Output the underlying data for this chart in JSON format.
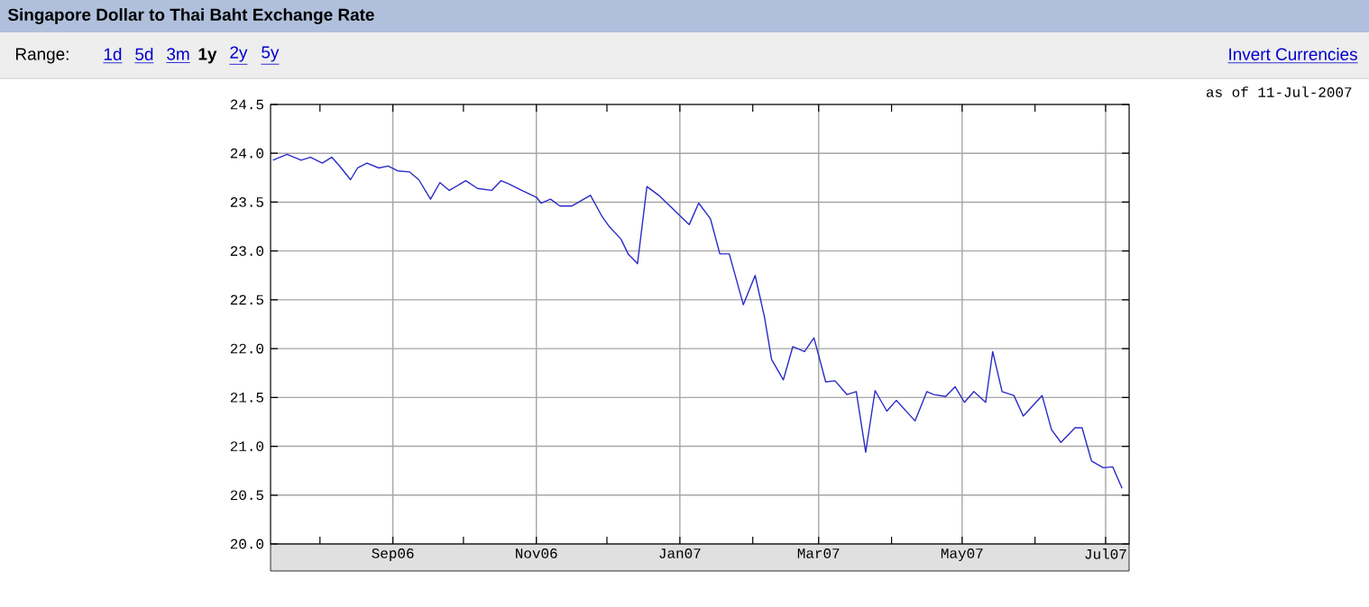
{
  "chart_data": {
    "type": "line",
    "title": "Singapore Dollar to Thai Baht Exchange Rate",
    "annotations": [
      "as of 11-Jul-2007",
      "Range:",
      "1d",
      "5d",
      "3m",
      "1y",
      "2y",
      "5y",
      "Invert Currencies"
    ],
    "x": [
      "2006-07-12",
      "2006-07-18",
      "2006-07-24",
      "2006-07-28",
      "2006-08-02",
      "2006-08-06",
      "2006-08-09",
      "2006-08-14",
      "2006-08-17",
      "2006-08-21",
      "2006-08-26",
      "2006-08-30",
      "2006-09-03",
      "2006-09-08",
      "2006-09-12",
      "2006-09-17",
      "2006-09-21",
      "2006-09-25",
      "2006-10-02",
      "2006-10-07",
      "2006-10-13",
      "2006-10-17",
      "2006-10-20",
      "2006-10-25",
      "2006-11-01",
      "2006-11-03",
      "2006-11-07",
      "2006-11-11",
      "2006-11-16",
      "2006-11-24",
      "2006-11-29",
      "2006-12-02",
      "2006-12-07",
      "2006-12-10",
      "2006-12-14",
      "2006-12-18",
      "2006-12-23",
      "2007-01-05",
      "2007-01-09",
      "2007-01-14",
      "2007-01-18",
      "2007-01-22",
      "2007-01-28",
      "2007-02-02",
      "2007-02-06",
      "2007-02-09",
      "2007-02-14",
      "2007-02-18",
      "2007-02-23",
      "2007-02-27",
      "2007-03-04",
      "2007-03-08",
      "2007-03-13",
      "2007-03-17",
      "2007-03-21",
      "2007-03-25",
      "2007-03-30",
      "2007-04-03",
      "2007-04-11",
      "2007-04-16",
      "2007-04-19",
      "2007-04-24",
      "2007-04-28",
      "2007-05-02",
      "2007-05-06",
      "2007-05-11",
      "2007-05-14",
      "2007-05-18",
      "2007-05-23",
      "2007-05-27",
      "2007-06-04",
      "2007-06-08",
      "2007-06-12",
      "2007-06-18",
      "2007-06-21",
      "2007-06-25",
      "2007-06-30",
      "2007-07-04",
      "2007-07-08"
    ],
    "series": [
      {
        "color": "#2b2bc8",
        "values": [
          23.93,
          23.99,
          23.93,
          23.96,
          23.9,
          23.96,
          23.88,
          23.73,
          23.85,
          23.9,
          23.85,
          23.87,
          23.82,
          23.81,
          23.73,
          23.53,
          23.7,
          23.62,
          23.72,
          23.64,
          23.62,
          23.72,
          23.69,
          23.63,
          23.55,
          23.49,
          23.53,
          23.46,
          23.46,
          23.57,
          23.35,
          23.25,
          23.12,
          22.97,
          22.87,
          23.66,
          23.57,
          23.27,
          23.49,
          23.33,
          22.97,
          22.97,
          22.45,
          22.75,
          22.32,
          21.89,
          21.68,
          22.02,
          21.97,
          22.11,
          21.66,
          21.67,
          21.53,
          21.56,
          20.94,
          21.57,
          21.36,
          21.47,
          21.26,
          21.56,
          21.53,
          21.51,
          21.61,
          21.45,
          21.56,
          21.45,
          21.97,
          21.56,
          21.52,
          21.31,
          21.52,
          21.17,
          21.04,
          21.19,
          21.19,
          20.85,
          20.78,
          20.79,
          20.57
        ]
      }
    ],
    "xlim": [
      "2006-07-11",
      "2007-07-11"
    ],
    "xticks": [
      {
        "value": "2006-08-01",
        "label": null
      },
      {
        "value": "2006-09-01",
        "label": "Sep06"
      },
      {
        "value": "2006-10-01",
        "label": null
      },
      {
        "value": "2006-11-01",
        "label": "Nov06"
      },
      {
        "value": "2006-12-01",
        "label": null
      },
      {
        "value": "2007-01-01",
        "label": "Jan07"
      },
      {
        "value": "2007-02-01",
        "label": null
      },
      {
        "value": "2007-03-01",
        "label": "Mar07"
      },
      {
        "value": "2007-04-01",
        "label": null
      },
      {
        "value": "2007-05-01",
        "label": "May07"
      },
      {
        "value": "2007-06-01",
        "label": null
      },
      {
        "value": "2007-07-01",
        "label": "Jul07"
      }
    ],
    "ylim": [
      20,
      24.5
    ],
    "yticks": [
      {
        "value": 20,
        "label": "20.0"
      },
      {
        "value": 20.5,
        "label": "20.5"
      },
      {
        "value": 21,
        "label": "21.0"
      },
      {
        "value": 21.5,
        "label": "21.5"
      },
      {
        "value": 22,
        "label": "22.0"
      },
      {
        "value": 22.5,
        "label": "22.5"
      },
      {
        "value": 23,
        "label": "23.0"
      },
      {
        "value": 23.5,
        "label": "23.5"
      },
      {
        "value": 24,
        "label": "24.0"
      },
      {
        "value": 24.5,
        "label": "24.5"
      }
    ],
    "grid": true
  }
}
